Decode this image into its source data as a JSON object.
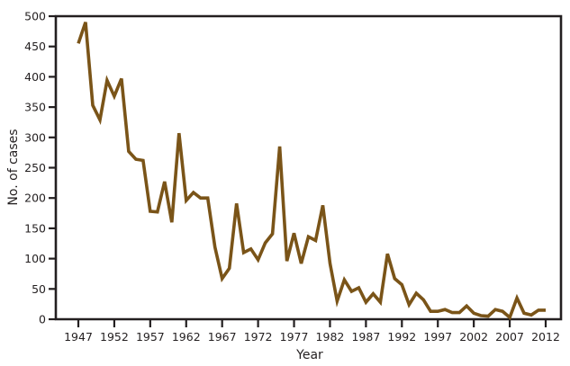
{
  "chart_data": {
    "type": "line",
    "title": "",
    "xlabel": "Year",
    "ylabel": "No. of cases",
    "ylim": [
      0,
      500
    ],
    "xlim": [
      1947,
      2012
    ],
    "grid": false,
    "legend": null,
    "y_ticks": [
      0,
      50,
      100,
      150,
      200,
      250,
      300,
      350,
      400,
      450,
      500
    ],
    "x_ticks": [
      1947,
      1952,
      1957,
      1962,
      1967,
      1972,
      1977,
      1982,
      1987,
      1992,
      1997,
      2002,
      2007,
      2012
    ],
    "line_color": "#7a5418",
    "axis_color": "#231f20",
    "series": [
      {
        "name": "No. of cases",
        "x": [
          1947,
          1948,
          1949,
          1950,
          1951,
          1952,
          1953,
          1954,
          1955,
          1956,
          1957,
          1958,
          1959,
          1960,
          1961,
          1962,
          1963,
          1964,
          1965,
          1966,
          1967,
          1968,
          1969,
          1970,
          1971,
          1972,
          1973,
          1974,
          1975,
          1976,
          1977,
          1978,
          1979,
          1980,
          1981,
          1982,
          1983,
          1984,
          1985,
          1986,
          1987,
          1988,
          1989,
          1990,
          1991,
          1992,
          1993,
          1994,
          1995,
          1996,
          1997,
          1998,
          1999,
          2000,
          2001,
          2002,
          2003,
          2004,
          2005,
          2006,
          2007,
          2008,
          2009,
          2010,
          2011,
          2012
        ],
        "values": [
          455,
          490,
          353,
          329,
          394,
          368,
          397,
          277,
          264,
          262,
          178,
          177,
          227,
          160,
          307,
          196,
          209,
          200,
          200,
          119,
          67,
          84,
          191,
          110,
          116,
          98,
          126,
          141,
          285,
          96,
          142,
          92,
          136,
          130,
          188,
          92,
          30,
          65,
          46,
          52,
          28,
          42,
          28,
          108,
          67,
          57,
          24,
          43,
          32,
          13,
          13,
          16,
          11,
          11,
          22,
          10,
          6,
          5,
          16,
          13,
          3,
          35,
          10,
          7,
          15,
          15
        ]
      }
    ]
  }
}
